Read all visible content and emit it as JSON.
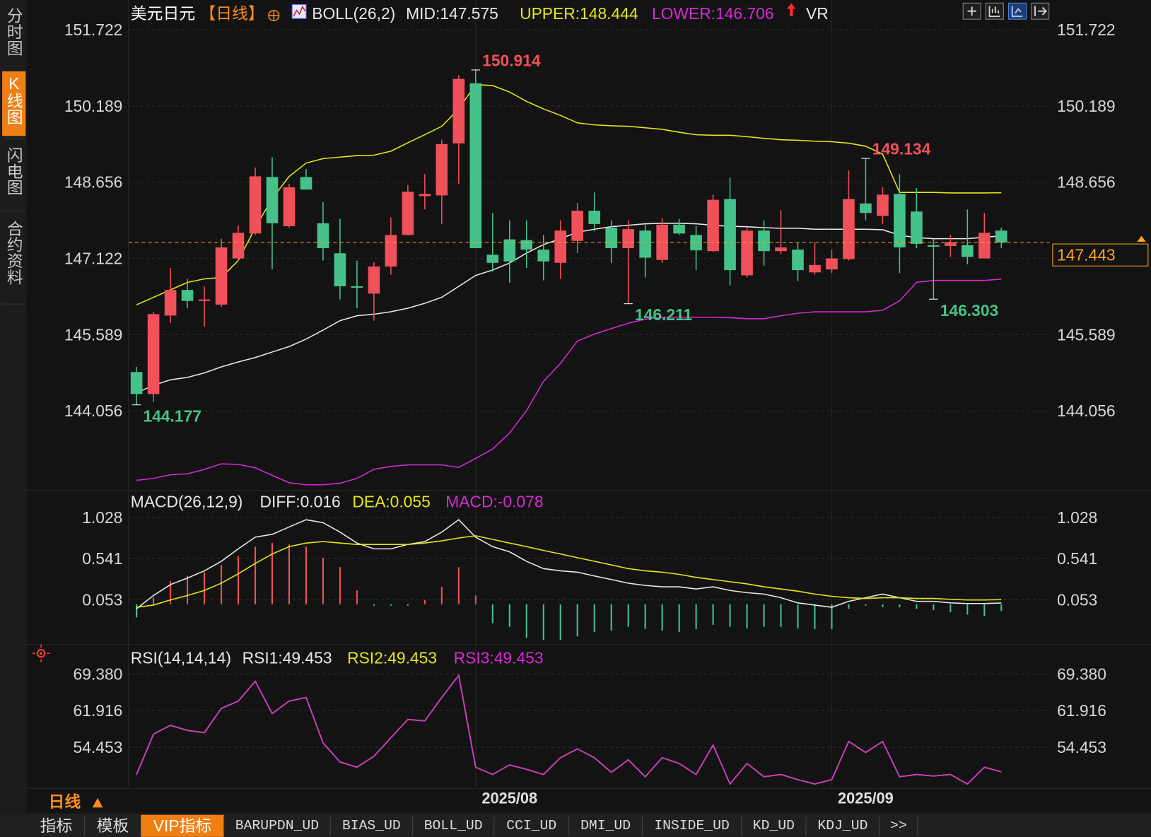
{
  "sidebar": {
    "tabs": [
      {
        "label": "分时图"
      },
      {
        "label": "K线图",
        "active": true
      },
      {
        "label": "闪电图"
      },
      {
        "label": "合约资料"
      }
    ]
  },
  "period_selector": "日线",
  "tabs": [
    {
      "label": "指标"
    },
    {
      "label": "模板"
    },
    {
      "label": "VIP指标",
      "active": true
    },
    {
      "label": "BARUPDN_UD"
    },
    {
      "label": "BIAS_UD"
    },
    {
      "label": "BOLL_UD"
    },
    {
      "label": "CCI_UD"
    },
    {
      "label": "DMI_UD"
    },
    {
      "label": "INSIDE_UD"
    },
    {
      "label": "KD_UD"
    },
    {
      "label": "KDJ_UD"
    },
    {
      "label": ">>"
    }
  ],
  "chart_data": [
    {
      "type": "candlestick",
      "title": "美元日元",
      "period": "【日线】",
      "indicator": "BOLL(26,2)",
      "extra": "VR",
      "ylim": [
        142.5,
        152.2
      ],
      "yticks": [
        151.722,
        150.189,
        148.656,
        147.122,
        145.589,
        144.056
      ],
      "up_color": "#f0505a",
      "down_color": "#45c289",
      "last_color": "#ffa31a",
      "open": [
        144.837,
        144.395,
        145.973,
        146.488,
        146.267,
        146.194,
        147.123,
        147.624,
        148.759,
        147.771,
        148.759,
        147.83,
        147.226,
        146.562,
        146.415,
        146.96,
        147.594,
        148.376,
        148.39,
        149.437,
        150.646,
        147.196,
        147.506,
        147.491,
        147.299,
        147.034,
        147.476,
        148.081,
        147.742,
        147.329,
        147.683,
        147.093,
        147.801,
        147.594,
        147.27,
        148.317,
        146.783,
        147.683,
        147.27,
        147.299,
        146.842,
        146.901,
        147.108,
        148.228,
        147.978,
        148.42,
        148.066,
        147.388,
        147.373,
        147.388,
        147.123,
        147.683
      ],
      "high": [
        144.94,
        146.046,
        146.931,
        146.709,
        146.562,
        147.521,
        147.786,
        148.951,
        149.157,
        148.626,
        148.921,
        148.258,
        147.919,
        147.078,
        147.049,
        147.948,
        148.597,
        148.818,
        149.511,
        150.808,
        150.914,
        148.037,
        147.889,
        147.889,
        147.594,
        147.889,
        148.243,
        148.449,
        147.889,
        147.889,
        147.815,
        147.933,
        147.919,
        147.771,
        148.405,
        148.744,
        147.742,
        147.889,
        148.095,
        147.447,
        147.447,
        147.299,
        148.892,
        149.134,
        148.553,
        148.818,
        148.538,
        147.506,
        147.594,
        148.11,
        148.037,
        147.742
      ],
      "low": [
        144.177,
        144.233,
        145.825,
        146.12,
        145.751,
        146.149,
        147.078,
        147.594,
        146.901,
        147.742,
        148.508,
        147.078,
        146.297,
        146.12,
        145.869,
        146.798,
        147.594,
        148.11,
        147.815,
        148.626,
        147.329,
        146.857,
        146.636,
        146.931,
        146.68,
        146.709,
        147.226,
        147.668,
        147.034,
        146.211,
        146.739,
        147.034,
        147.594,
        146.887,
        147.255,
        146.577,
        146.739,
        146.975,
        147.211,
        146.665,
        146.798,
        146.828,
        147.078,
        147.889,
        147.815,
        146.828,
        147.329,
        146.303,
        147.152,
        147.005,
        147.123,
        147.329
      ],
      "close": [
        144.395,
        146.002,
        146.488,
        146.267,
        146.297,
        147.344,
        147.638,
        148.774,
        147.83,
        148.553,
        148.508,
        147.329,
        146.562,
        146.533,
        146.96,
        147.594,
        148.464,
        148.42,
        149.422,
        150.734,
        147.329,
        147.034,
        147.063,
        147.299,
        147.063,
        147.683,
        148.081,
        147.815,
        147.329,
        147.712,
        147.137,
        147.801,
        147.624,
        147.285,
        148.302,
        146.887,
        147.683,
        147.27,
        147.344,
        146.887,
        146.99,
        147.123,
        148.317,
        148.037,
        148.405,
        147.344,
        147.417,
        147.358,
        147.447,
        147.152,
        147.638,
        147.443
      ],
      "series": [
        {
          "name": "MID:",
          "color": "#e8e8e8",
          "values": [
            144.42,
            144.57,
            144.68,
            144.73,
            144.82,
            144.94,
            145.04,
            145.13,
            145.24,
            145.35,
            145.5,
            145.68,
            145.87,
            145.97,
            146.0,
            146.05,
            146.12,
            146.22,
            146.34,
            146.56,
            146.78,
            146.89,
            147.03,
            147.23,
            147.4,
            147.52,
            147.65,
            147.71,
            147.76,
            147.79,
            147.82,
            147.83,
            147.83,
            147.82,
            147.79,
            147.77,
            147.76,
            147.74,
            147.73,
            147.73,
            147.71,
            147.71,
            147.71,
            147.71,
            147.7,
            147.59,
            147.54,
            147.52,
            147.52,
            147.52,
            147.55,
            147.575
          ]
        },
        {
          "name": "UPPER:",
          "color": "#e6e619",
          "values": [
            146.19,
            146.34,
            146.49,
            146.64,
            146.71,
            146.74,
            147.08,
            147.74,
            148.33,
            148.77,
            149.04,
            149.13,
            149.16,
            149.19,
            149.2,
            149.28,
            149.45,
            149.61,
            149.78,
            150.13,
            150.62,
            150.6,
            150.47,
            150.28,
            150.13,
            150.0,
            149.85,
            149.81,
            149.79,
            149.78,
            149.75,
            149.72,
            149.66,
            149.61,
            149.6,
            149.6,
            149.57,
            149.54,
            149.51,
            149.5,
            149.48,
            149.47,
            149.44,
            149.38,
            149.22,
            148.45,
            148.45,
            148.45,
            148.44,
            148.44,
            148.44,
            148.444
          ]
        },
        {
          "name": "LOWER:",
          "color": "#d62ad6",
          "values": [
            142.66,
            142.7,
            142.77,
            142.79,
            142.88,
            142.99,
            142.98,
            142.91,
            142.76,
            142.61,
            142.57,
            142.57,
            142.6,
            142.7,
            142.88,
            142.94,
            142.97,
            142.97,
            142.97,
            142.92,
            143.1,
            143.29,
            143.61,
            144.06,
            144.65,
            145.01,
            145.46,
            145.6,
            145.71,
            145.82,
            145.9,
            145.94,
            145.94,
            145.94,
            145.94,
            145.93,
            145.91,
            145.91,
            145.97,
            146.02,
            146.05,
            146.05,
            146.05,
            146.05,
            146.08,
            146.27,
            146.64,
            146.68,
            146.68,
            146.68,
            146.68,
            146.706
          ]
        }
      ]
    },
    {
      "type": "macd",
      "title": "MACD(26,12,9)",
      "ylim": [
        -0.45,
        1.33
      ],
      "yticks": [
        1.028,
        0.541,
        0.053
      ],
      "histogram": {
        "name": "MACD:",
        "color": "#d62ad6",
        "up_color": "#f0505a",
        "down_color": "#45c289",
        "values": [
          -0.155,
          0.078,
          0.276,
          0.336,
          0.38,
          0.466,
          0.569,
          0.682,
          0.725,
          0.708,
          0.682,
          0.552,
          0.44,
          0.164,
          -0.017,
          -0.017,
          -0.017,
          0.052,
          0.207,
          0.44,
          0.104,
          -0.224,
          -0.267,
          -0.397,
          -0.423,
          -0.423,
          -0.38,
          -0.328,
          -0.311,
          -0.267,
          -0.293,
          -0.311,
          -0.328,
          -0.293,
          -0.242,
          -0.267,
          -0.285,
          -0.267,
          -0.267,
          -0.285,
          -0.293,
          -0.293,
          -0.052,
          -0.017,
          -0.035,
          -0.035,
          -0.052,
          -0.069,
          -0.095,
          -0.121,
          -0.138,
          -0.078
        ]
      },
      "series": [
        {
          "name": "DIFF:",
          "color": "#e8e8e8",
          "values": [
            -0.052,
            0.104,
            0.233,
            0.311,
            0.397,
            0.509,
            0.656,
            0.794,
            0.828,
            0.915,
            1.001,
            0.966,
            0.854,
            0.725,
            0.656,
            0.656,
            0.708,
            0.742,
            0.854,
            1.001,
            0.794,
            0.682,
            0.621,
            0.509,
            0.423,
            0.397,
            0.38,
            0.336,
            0.293,
            0.25,
            0.224,
            0.207,
            0.207,
            0.181,
            0.207,
            0.164,
            0.138,
            0.121,
            0.078,
            0.017,
            -0.009,
            -0.035,
            0.035,
            0.078,
            0.121,
            0.078,
            0.035,
            0.035,
            0.017,
            0.009,
            0.009,
            0.016
          ]
        },
        {
          "name": "DEA:",
          "color": "#e6e619",
          "values": [
            -0.035,
            -0.009,
            0.052,
            0.104,
            0.164,
            0.25,
            0.362,
            0.483,
            0.595,
            0.682,
            0.725,
            0.742,
            0.725,
            0.708,
            0.708,
            0.708,
            0.708,
            0.725,
            0.751,
            0.785,
            0.811,
            0.768,
            0.725,
            0.682,
            0.638,
            0.595,
            0.552,
            0.509,
            0.466,
            0.423,
            0.397,
            0.38,
            0.354,
            0.319,
            0.293,
            0.267,
            0.242,
            0.207,
            0.181,
            0.155,
            0.121,
            0.095,
            0.078,
            0.069,
            0.078,
            0.078,
            0.069,
            0.069,
            0.06,
            0.052,
            0.052,
            0.055
          ]
        }
      ]
    },
    {
      "type": "line",
      "title": "RSI(14,14,14)",
      "ylim": [
        46.4,
        74.75
      ],
      "yticks": [
        {
          "value": 69.38,
          "label": "69.380"
        },
        61.916,
        54.453
      ],
      "categories": [
        null,
        null,
        null,
        null,
        null,
        null,
        null,
        null,
        null,
        null,
        null,
        null,
        null,
        null,
        null,
        null,
        null,
        null,
        null,
        null,
        null,
        null,
        "2025/08",
        null,
        null,
        null,
        null,
        null,
        null,
        null,
        null,
        null,
        null,
        null,
        null,
        null,
        null,
        null,
        null,
        null,
        null,
        null,
        null,
        "2025/09",
        null,
        null,
        null,
        null,
        null,
        null,
        null,
        null
      ],
      "series": [
        {
          "name": "RSI1:",
          "color": "#e8e8e8",
          "values": [
            48.93,
            57.14,
            58.93,
            57.89,
            57.44,
            62.36,
            63.86,
            67.89,
            61.32,
            63.86,
            64.6,
            55.35,
            51.47,
            50.42,
            52.66,
            56.39,
            60.12,
            59.83,
            64.6,
            69.08,
            50.42,
            48.93,
            50.87,
            49.98,
            48.93,
            52.36,
            54.15,
            52.36,
            49.38,
            51.92,
            48.48,
            52.36,
            51.17,
            48.93,
            54.9,
            46.99,
            51.17,
            48.48,
            48.93,
            47.89,
            46.99,
            47.89,
            55.65,
            53.41,
            55.65,
            48.48,
            48.93,
            48.63,
            48.93,
            46.99,
            50.42,
            49.453
          ]
        },
        {
          "name": "RSI2:",
          "color": "#e6e619",
          "values": [
            48.93,
            57.14,
            58.93,
            57.89,
            57.44,
            62.36,
            63.86,
            67.89,
            61.32,
            63.86,
            64.6,
            55.35,
            51.47,
            50.42,
            52.66,
            56.39,
            60.12,
            59.83,
            64.6,
            69.08,
            50.42,
            48.93,
            50.87,
            49.98,
            48.93,
            52.36,
            54.15,
            52.36,
            49.38,
            51.92,
            48.48,
            52.36,
            51.17,
            48.93,
            54.9,
            46.99,
            51.17,
            48.48,
            48.93,
            47.89,
            46.99,
            47.89,
            55.65,
            53.41,
            55.65,
            48.48,
            48.93,
            48.63,
            48.93,
            46.99,
            50.42,
            49.453
          ]
        },
        {
          "name": "RSI3:",
          "color": "#d62ad6",
          "values": [
            48.93,
            57.14,
            58.93,
            57.89,
            57.44,
            62.36,
            63.86,
            67.89,
            61.32,
            63.86,
            64.6,
            55.35,
            51.47,
            50.42,
            52.66,
            56.39,
            60.12,
            59.83,
            64.6,
            69.08,
            50.42,
            48.93,
            50.87,
            49.98,
            48.93,
            52.36,
            54.15,
            52.36,
            49.38,
            51.92,
            48.48,
            52.36,
            51.17,
            48.93,
            54.9,
            46.99,
            51.17,
            48.48,
            48.93,
            47.89,
            46.99,
            47.89,
            55.65,
            53.41,
            55.65,
            48.48,
            48.93,
            48.63,
            48.93,
            46.99,
            50.42,
            49.453
          ]
        }
      ]
    }
  ]
}
